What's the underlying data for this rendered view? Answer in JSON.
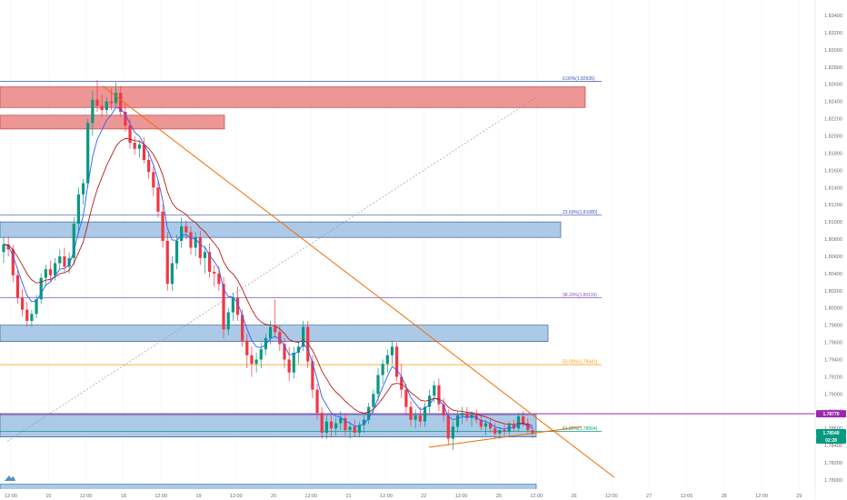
{
  "chart_data": {
    "type": "candlestick",
    "y_axis": {
      "range": [
        1.7775,
        1.8345
      ],
      "tick_labels": [
        "1.78000",
        "1.78200",
        "1.78400",
        "1.78600",
        "1.78800",
        "1.79000",
        "1.79200",
        "1.79400",
        "1.79600",
        "1.79800",
        "1.80000",
        "1.80200",
        "1.80400",
        "1.80600",
        "1.80800",
        "1.81000",
        "1.81200",
        "1.81400",
        "1.81600",
        "1.81800",
        "1.82000",
        "1.82200",
        "1.82400",
        "1.82600",
        "1.82800",
        "1.83000",
        "1.83200",
        "1.83400"
      ]
    },
    "x_axis": {
      "tick_labels": [
        "12:00",
        "15",
        "12:00",
        "18",
        "12:00",
        "19",
        "12:00",
        "20",
        "12:00",
        "21",
        "12:00",
        "22",
        "12:00",
        "25",
        "12:00",
        "26",
        "12:00",
        "27",
        "12:00",
        "28",
        "12:00",
        "29"
      ]
    },
    "price_badges": [
      {
        "value": "1.78770",
        "color": "#9c27b0"
      },
      {
        "value": "1.78540",
        "color": "#089981"
      },
      {
        "value": "02:28",
        "color": "#089981"
      }
    ],
    "fib_levels": [
      {
        "label": "0.00%(1.82635)",
        "value": 1.82635,
        "color": "#3f51b5"
      },
      {
        "label": "23.60%(1.81080)",
        "value": 1.8108,
        "color": "#3f51b5"
      },
      {
        "label": "38.20%(1.80119)",
        "value": 1.80119,
        "color": "#7e57c2"
      },
      {
        "label": "50.00%(1.79341)",
        "value": 1.79341,
        "color": "#ff9800"
      },
      {
        "label": "61.80%(1.78564)",
        "value": 1.78564,
        "color": "#089981"
      }
    ],
    "zones": [
      {
        "kind": "resistance",
        "y1": 1.8257,
        "y2": 1.8233
      },
      {
        "kind": "resistance",
        "y1": 1.8224,
        "y2": 1.8208
      },
      {
        "kind": "support",
        "y1": 1.81,
        "y2": 1.8082
      },
      {
        "kind": "support",
        "y1": 1.798,
        "y2": 1.7961
      },
      {
        "kind": "support",
        "y1": 1.7876,
        "y2": 1.785
      },
      {
        "kind": "support",
        "y1": 1.7795,
        "y2": 1.7788
      }
    ],
    "horizontal_line": {
      "value": 1.7877,
      "color": "#9c27b0"
    },
    "colors": {
      "up": "#089981",
      "down": "#f23645",
      "ema_fast": "#2962ff",
      "ema_slow": "#b71c1c",
      "trendline": "#ef6c00",
      "zone_red": "#e57373",
      "zone_blue": "#90b8e0"
    },
    "candles": [
      {
        "o": 1.8065,
        "h": 1.8082,
        "l": 1.8052,
        "c": 1.8074
      },
      {
        "o": 1.8074,
        "h": 1.8083,
        "l": 1.806,
        "c": 1.8068
      },
      {
        "o": 1.8068,
        "h": 1.8073,
        "l": 1.803,
        "c": 1.8038
      },
      {
        "o": 1.8038,
        "h": 1.8045,
        "l": 1.8005,
        "c": 1.8012
      },
      {
        "o": 1.8012,
        "h": 1.8022,
        "l": 1.799,
        "c": 1.7998
      },
      {
        "o": 1.7998,
        "h": 1.8007,
        "l": 1.7978,
        "c": 1.7985
      },
      {
        "o": 1.7985,
        "h": 1.7998,
        "l": 1.7978,
        "c": 1.7993
      },
      {
        "o": 1.7993,
        "h": 1.8015,
        "l": 1.7988,
        "c": 1.801
      },
      {
        "o": 1.801,
        "h": 1.804,
        "l": 1.8005,
        "c": 1.8035
      },
      {
        "o": 1.8035,
        "h": 1.805,
        "l": 1.8025,
        "c": 1.8045
      },
      {
        "o": 1.8045,
        "h": 1.8055,
        "l": 1.803,
        "c": 1.8038
      },
      {
        "o": 1.8038,
        "h": 1.8058,
        "l": 1.8032,
        "c": 1.8052
      },
      {
        "o": 1.8052,
        "h": 1.8068,
        "l": 1.8045,
        "c": 1.806
      },
      {
        "o": 1.806,
        "h": 1.807,
        "l": 1.8042,
        "c": 1.8048
      },
      {
        "o": 1.8048,
        "h": 1.8065,
        "l": 1.804,
        "c": 1.8058
      },
      {
        "o": 1.8058,
        "h": 1.8105,
        "l": 1.805,
        "c": 1.8098
      },
      {
        "o": 1.8098,
        "h": 1.814,
        "l": 1.809,
        "c": 1.8132
      },
      {
        "o": 1.8132,
        "h": 1.815,
        "l": 1.812,
        "c": 1.8145
      },
      {
        "o": 1.8145,
        "h": 1.822,
        "l": 1.814,
        "c": 1.8215
      },
      {
        "o": 1.8215,
        "h": 1.8252,
        "l": 1.82,
        "c": 1.8242
      },
      {
        "o": 1.8242,
        "h": 1.8265,
        "l": 1.8228,
        "c": 1.8235
      },
      {
        "o": 1.8235,
        "h": 1.8248,
        "l": 1.8222,
        "c": 1.823
      },
      {
        "o": 1.823,
        "h": 1.8245,
        "l": 1.8225,
        "c": 1.824
      },
      {
        "o": 1.824,
        "h": 1.8255,
        "l": 1.823,
        "c": 1.8238
      },
      {
        "o": 1.8238,
        "h": 1.8262,
        "l": 1.8232,
        "c": 1.825
      },
      {
        "o": 1.825,
        "h": 1.8258,
        "l": 1.8222,
        "c": 1.8228
      },
      {
        "o": 1.8228,
        "h": 1.8238,
        "l": 1.8205,
        "c": 1.8212
      },
      {
        "o": 1.8212,
        "h": 1.822,
        "l": 1.8185,
        "c": 1.8192
      },
      {
        "o": 1.8192,
        "h": 1.82,
        "l": 1.8178,
        "c": 1.8185
      },
      {
        "o": 1.8185,
        "h": 1.8195,
        "l": 1.8175,
        "c": 1.819
      },
      {
        "o": 1.819,
        "h": 1.8198,
        "l": 1.8168,
        "c": 1.8172
      },
      {
        "o": 1.8172,
        "h": 1.8182,
        "l": 1.815,
        "c": 1.8158
      },
      {
        "o": 1.8158,
        "h": 1.8165,
        "l": 1.813,
        "c": 1.814
      },
      {
        "o": 1.814,
        "h": 1.8148,
        "l": 1.8105,
        "c": 1.8112
      },
      {
        "o": 1.8112,
        "h": 1.812,
        "l": 1.807,
        "c": 1.8078
      },
      {
        "o": 1.8078,
        "h": 1.8088,
        "l": 1.802,
        "c": 1.8028
      },
      {
        "o": 1.8028,
        "h": 1.806,
        "l": 1.802,
        "c": 1.8052
      },
      {
        "o": 1.8052,
        "h": 1.8085,
        "l": 1.8045,
        "c": 1.8078
      },
      {
        "o": 1.8078,
        "h": 1.8105,
        "l": 1.807,
        "c": 1.8095
      },
      {
        "o": 1.8095,
        "h": 1.8102,
        "l": 1.808,
        "c": 1.8088
      },
      {
        "o": 1.8088,
        "h": 1.8095,
        "l": 1.8062,
        "c": 1.807
      },
      {
        "o": 1.807,
        "h": 1.8088,
        "l": 1.806,
        "c": 1.8082
      },
      {
        "o": 1.8082,
        "h": 1.809,
        "l": 1.805,
        "c": 1.8058
      },
      {
        "o": 1.8058,
        "h": 1.8072,
        "l": 1.804,
        "c": 1.8065
      },
      {
        "o": 1.8065,
        "h": 1.8075,
        "l": 1.8035,
        "c": 1.8042
      },
      {
        "o": 1.8042,
        "h": 1.805,
        "l": 1.8025,
        "c": 1.804
      },
      {
        "o": 1.804,
        "h": 1.8048,
        "l": 1.802,
        "c": 1.8028
      },
      {
        "o": 1.8028,
        "h": 1.8036,
        "l": 1.7965,
        "c": 1.7975
      },
      {
        "o": 1.7975,
        "h": 1.8,
        "l": 1.7968,
        "c": 1.7995
      },
      {
        "o": 1.7995,
        "h": 1.8018,
        "l": 1.7985,
        "c": 1.8012
      },
      {
        "o": 1.8012,
        "h": 1.8025,
        "l": 1.7985,
        "c": 1.7992
      },
      {
        "o": 1.7992,
        "h": 1.7998,
        "l": 1.7955,
        "c": 1.7962
      },
      {
        "o": 1.7962,
        "h": 1.797,
        "l": 1.793,
        "c": 1.7945
      },
      {
        "o": 1.7945,
        "h": 1.7955,
        "l": 1.792,
        "c": 1.7935
      },
      {
        "o": 1.7935,
        "h": 1.7948,
        "l": 1.7925,
        "c": 1.794
      },
      {
        "o": 1.794,
        "h": 1.796,
        "l": 1.793,
        "c": 1.7952
      },
      {
        "o": 1.7952,
        "h": 1.797,
        "l": 1.7945,
        "c": 1.7965
      },
      {
        "o": 1.7965,
        "h": 1.7985,
        "l": 1.7958,
        "c": 1.7978
      },
      {
        "o": 1.7978,
        "h": 1.801,
        "l": 1.7965,
        "c": 1.7972
      },
      {
        "o": 1.7972,
        "h": 1.798,
        "l": 1.795,
        "c": 1.7958
      },
      {
        "o": 1.7958,
        "h": 1.7965,
        "l": 1.793,
        "c": 1.794
      },
      {
        "o": 1.794,
        "h": 1.7955,
        "l": 1.7915,
        "c": 1.7925
      },
      {
        "o": 1.7925,
        "h": 1.7955,
        "l": 1.7918,
        "c": 1.7948
      },
      {
        "o": 1.7948,
        "h": 1.796,
        "l": 1.7935,
        "c": 1.7955
      },
      {
        "o": 1.7955,
        "h": 1.7985,
        "l": 1.795,
        "c": 1.7978
      },
      {
        "o": 1.7978,
        "h": 1.7985,
        "l": 1.793,
        "c": 1.7938
      },
      {
        "o": 1.7938,
        "h": 1.7945,
        "l": 1.7895,
        "c": 1.7905
      },
      {
        "o": 1.7905,
        "h": 1.7912,
        "l": 1.787,
        "c": 1.7878
      },
      {
        "o": 1.7878,
        "h": 1.7885,
        "l": 1.7848,
        "c": 1.7855
      },
      {
        "o": 1.7855,
        "h": 1.7875,
        "l": 1.7848,
        "c": 1.7868
      },
      {
        "o": 1.7868,
        "h": 1.7878,
        "l": 1.785,
        "c": 1.786
      },
      {
        "o": 1.786,
        "h": 1.7872,
        "l": 1.7852,
        "c": 1.7866
      },
      {
        "o": 1.7866,
        "h": 1.788,
        "l": 1.7858,
        "c": 1.7872
      },
      {
        "o": 1.7872,
        "h": 1.7878,
        "l": 1.7852,
        "c": 1.7858
      },
      {
        "o": 1.7858,
        "h": 1.7868,
        "l": 1.7848,
        "c": 1.7862
      },
      {
        "o": 1.7862,
        "h": 1.787,
        "l": 1.785,
        "c": 1.7855
      },
      {
        "o": 1.7855,
        "h": 1.7868,
        "l": 1.785,
        "c": 1.7864
      },
      {
        "o": 1.7864,
        "h": 1.7875,
        "l": 1.7855,
        "c": 1.787
      },
      {
        "o": 1.787,
        "h": 1.789,
        "l": 1.7865,
        "c": 1.7885
      },
      {
        "o": 1.7885,
        "h": 1.7905,
        "l": 1.7878,
        "c": 1.79
      },
      {
        "o": 1.79,
        "h": 1.793,
        "l": 1.7892,
        "c": 1.7922
      },
      {
        "o": 1.7922,
        "h": 1.794,
        "l": 1.7912,
        "c": 1.7935
      },
      {
        "o": 1.7935,
        "h": 1.7952,
        "l": 1.7925,
        "c": 1.7945
      },
      {
        "o": 1.7945,
        "h": 1.7962,
        "l": 1.7935,
        "c": 1.7955
      },
      {
        "o": 1.7955,
        "h": 1.796,
        "l": 1.7915,
        "c": 1.792
      },
      {
        "o": 1.792,
        "h": 1.7935,
        "l": 1.7895,
        "c": 1.7905
      },
      {
        "o": 1.7905,
        "h": 1.7912,
        "l": 1.7875,
        "c": 1.7885
      },
      {
        "o": 1.7885,
        "h": 1.7892,
        "l": 1.7862,
        "c": 1.787
      },
      {
        "o": 1.787,
        "h": 1.7882,
        "l": 1.786,
        "c": 1.7875
      },
      {
        "o": 1.7875,
        "h": 1.7885,
        "l": 1.7862,
        "c": 1.7868
      },
      {
        "o": 1.7868,
        "h": 1.789,
        "l": 1.7862,
        "c": 1.7885
      },
      {
        "o": 1.7885,
        "h": 1.7905,
        "l": 1.7878,
        "c": 1.7898
      },
      {
        "o": 1.7898,
        "h": 1.7915,
        "l": 1.789,
        "c": 1.791
      },
      {
        "o": 1.791,
        "h": 1.7918,
        "l": 1.788,
        "c": 1.7888
      },
      {
        "o": 1.7888,
        "h": 1.7895,
        "l": 1.7868,
        "c": 1.7875
      },
      {
        "o": 1.7875,
        "h": 1.7882,
        "l": 1.784,
        "c": 1.7848
      },
      {
        "o": 1.7848,
        "h": 1.7868,
        "l": 1.7835,
        "c": 1.7862
      },
      {
        "o": 1.7862,
        "h": 1.788,
        "l": 1.7855,
        "c": 1.7875
      },
      {
        "o": 1.7875,
        "h": 1.7885,
        "l": 1.7865,
        "c": 1.7878
      },
      {
        "o": 1.7878,
        "h": 1.7885,
        "l": 1.7868,
        "c": 1.7872
      },
      {
        "o": 1.7872,
        "h": 1.788,
        "l": 1.7862,
        "c": 1.7876
      },
      {
        "o": 1.7876,
        "h": 1.7882,
        "l": 1.7866,
        "c": 1.787
      },
      {
        "o": 1.787,
        "h": 1.7876,
        "l": 1.7858,
        "c": 1.7862
      },
      {
        "o": 1.7862,
        "h": 1.787,
        "l": 1.7852,
        "c": 1.7866
      },
      {
        "o": 1.7866,
        "h": 1.7872,
        "l": 1.7855,
        "c": 1.786
      },
      {
        "o": 1.786,
        "h": 1.7866,
        "l": 1.7848,
        "c": 1.7854
      },
      {
        "o": 1.7854,
        "h": 1.7862,
        "l": 1.7848,
        "c": 1.7858
      },
      {
        "o": 1.7858,
        "h": 1.7864,
        "l": 1.785,
        "c": 1.7856
      },
      {
        "o": 1.7856,
        "h": 1.7868,
        "l": 1.7852,
        "c": 1.7864
      },
      {
        "o": 1.7864,
        "h": 1.787,
        "l": 1.7856,
        "c": 1.786
      },
      {
        "o": 1.786,
        "h": 1.7878,
        "l": 1.7856,
        "c": 1.7874
      },
      {
        "o": 1.7874,
        "h": 1.788,
        "l": 1.7862,
        "c": 1.7866
      },
      {
        "o": 1.7866,
        "h": 1.7872,
        "l": 1.7855,
        "c": 1.7858
      },
      {
        "o": 1.7858,
        "h": 1.7862,
        "l": 1.7849,
        "c": 1.7854
      }
    ]
  }
}
